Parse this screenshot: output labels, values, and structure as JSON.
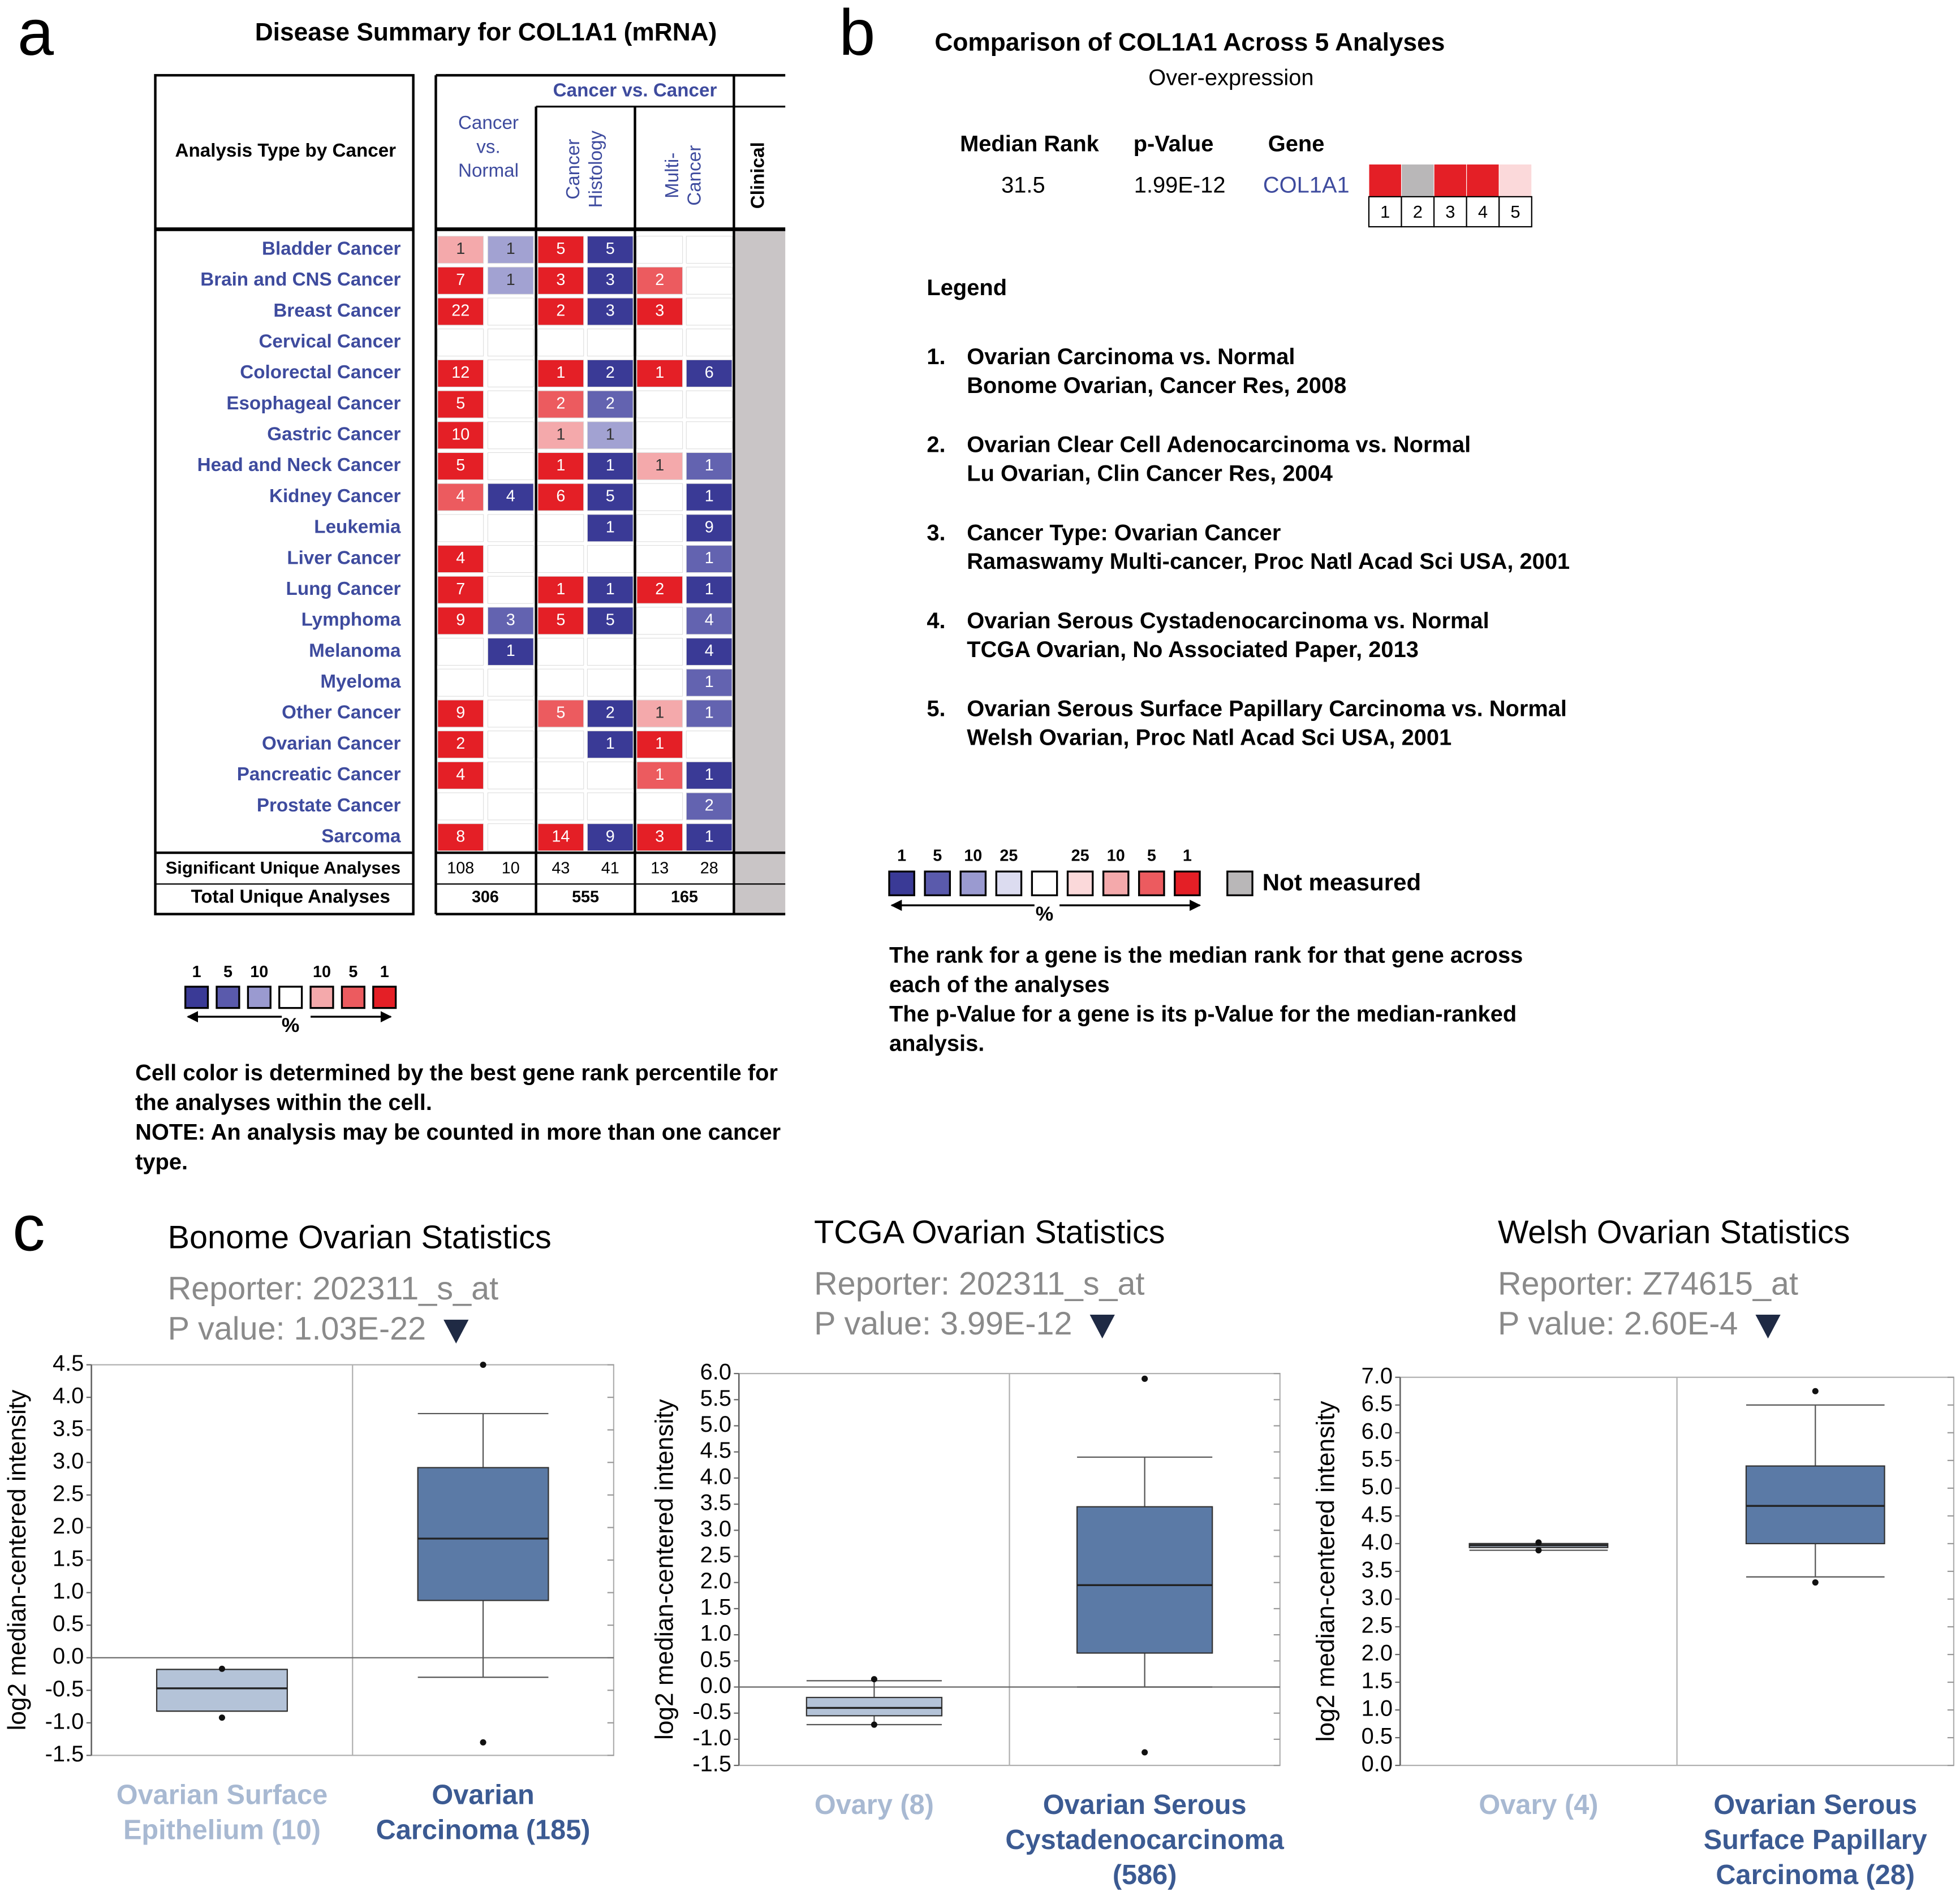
{
  "labels": [
    "a",
    "b",
    "c"
  ],
  "panel_a": {
    "title": "Disease Summary for COL1A1 (mRNA)",
    "row_header": "Analysis Type by Cancer",
    "group_header": "Cancer vs. Cancer",
    "column_groups": [
      [
        "Cancer",
        "vs.",
        "Normal"
      ],
      [
        "Cancer",
        "Histology"
      ],
      [
        "Multi-",
        "Cancer"
      ],
      [
        "Clinical"
      ]
    ],
    "rows": [
      {
        "label": "Bladder Cancer",
        "cells": [
          1,
          1,
          5,
          5,
          null,
          null
        ],
        "colors": [
          "#f4a9ab",
          "#a2a2d2",
          "#e41f26",
          "#3a3a96",
          null,
          null
        ]
      },
      {
        "label": "Brain and CNS Cancer",
        "cells": [
          7,
          1,
          3,
          3,
          2,
          null
        ],
        "colors": [
          "#e41f26",
          "#a2a2d2",
          "#e41f26",
          "#3a3a96",
          "#ec5b5f",
          null
        ]
      },
      {
        "label": "Breast Cancer",
        "cells": [
          22,
          null,
          2,
          3,
          3,
          null
        ],
        "colors": [
          "#e41f26",
          null,
          "#e41f26",
          "#3a3a96",
          "#e41f26",
          null
        ]
      },
      {
        "label": "Cervical Cancer",
        "cells": [
          null,
          null,
          null,
          null,
          null,
          null
        ],
        "colors": [
          null,
          null,
          null,
          null,
          null,
          null
        ]
      },
      {
        "label": "Colorectal Cancer",
        "cells": [
          12,
          null,
          1,
          2,
          1,
          6
        ],
        "colors": [
          "#e41f26",
          null,
          "#e41f26",
          "#3a3a96",
          "#e41f26",
          "#3a3a96"
        ]
      },
      {
        "label": "Esophageal Cancer",
        "cells": [
          5,
          null,
          2,
          2,
          null,
          null
        ],
        "colors": [
          "#e41f26",
          null,
          "#ec5b5f",
          "#6363b0",
          null,
          null
        ]
      },
      {
        "label": "Gastric Cancer",
        "cells": [
          10,
          null,
          1,
          1,
          null,
          null
        ],
        "colors": [
          "#e41f26",
          null,
          "#f4a9ab",
          "#a2a2d2",
          null,
          null
        ]
      },
      {
        "label": "Head and Neck Cancer",
        "cells": [
          5,
          null,
          1,
          1,
          1,
          1
        ],
        "colors": [
          "#e41f26",
          null,
          "#e41f26",
          "#3a3a96",
          "#f4a9ab",
          "#6363b0"
        ]
      },
      {
        "label": "Kidney Cancer",
        "cells": [
          4,
          4,
          6,
          5,
          null,
          1
        ],
        "colors": [
          "#ec5b5f",
          "#3a3a96",
          "#e41f26",
          "#3a3a96",
          null,
          "#3a3a96"
        ]
      },
      {
        "label": "Leukemia",
        "cells": [
          null,
          null,
          null,
          1,
          null,
          9
        ],
        "colors": [
          null,
          null,
          null,
          "#3a3a96",
          null,
          "#3a3a96"
        ]
      },
      {
        "label": "Liver Cancer",
        "cells": [
          4,
          null,
          null,
          null,
          null,
          1
        ],
        "colors": [
          "#e41f26",
          null,
          null,
          null,
          null,
          "#6363b0"
        ]
      },
      {
        "label": "Lung Cancer",
        "cells": [
          7,
          null,
          1,
          1,
          2,
          1
        ],
        "colors": [
          "#e41f26",
          null,
          "#e41f26",
          "#3a3a96",
          "#e41f26",
          "#3a3a96"
        ]
      },
      {
        "label": "Lymphoma",
        "cells": [
          9,
          3,
          5,
          5,
          null,
          4
        ],
        "colors": [
          "#e41f26",
          "#6363b0",
          "#e41f26",
          "#3a3a96",
          null,
          "#6363b0"
        ]
      },
      {
        "label": "Melanoma",
        "cells": [
          null,
          1,
          null,
          null,
          null,
          4
        ],
        "colors": [
          null,
          "#3a3a96",
          null,
          null,
          null,
          "#3a3a96"
        ]
      },
      {
        "label": "Myeloma",
        "cells": [
          null,
          null,
          null,
          null,
          null,
          1
        ],
        "colors": [
          null,
          null,
          null,
          null,
          null,
          "#6363b0"
        ]
      },
      {
        "label": "Other Cancer",
        "cells": [
          9,
          null,
          5,
          2,
          1,
          1
        ],
        "colors": [
          "#e41f26",
          null,
          "#ec5b5f",
          "#3a3a96",
          "#f4a9ab",
          "#6363b0"
        ]
      },
      {
        "label": "Ovarian Cancer",
        "cells": [
          2,
          null,
          null,
          1,
          1,
          null
        ],
        "colors": [
          "#e41f26",
          null,
          null,
          "#3a3a96",
          "#e41f26",
          null
        ]
      },
      {
        "label": "Pancreatic Cancer",
        "cells": [
          4,
          null,
          null,
          null,
          1,
          1
        ],
        "colors": [
          "#e41f26",
          null,
          null,
          null,
          "#ec5b5f",
          "#3a3a96"
        ]
      },
      {
        "label": "Prostate Cancer",
        "cells": [
          null,
          null,
          null,
          null,
          null,
          2
        ],
        "colors": [
          null,
          null,
          null,
          null,
          null,
          "#6363b0"
        ]
      },
      {
        "label": "Sarcoma",
        "cells": [
          8,
          null,
          14,
          9,
          3,
          1
        ],
        "colors": [
          "#e41f26",
          null,
          "#e41f26",
          "#3a3a96",
          "#e41f26",
          "#3a3a96"
        ]
      }
    ],
    "significant": {
      "label": "Significant Unique Analyses",
      "values": [
        108,
        10,
        43,
        41,
        13,
        28
      ]
    },
    "total": {
      "label": "Total Unique Analyses",
      "values": [
        306,
        555,
        165
      ]
    },
    "clinical_color": "#c9c5c6",
    "legend": {
      "labels": [
        1,
        5,
        10,
        null,
        10,
        5,
        1
      ],
      "colors": [
        "#3a3a96",
        "#5a5aac",
        "#9a9ad0",
        "#ffffff",
        "#f4a9ab",
        "#ec5b5f",
        "#e41f26"
      ],
      "unit": "%"
    },
    "notes": [
      "Cell color is determined by the best gene rank percentile for",
      "the analyses within the cell.",
      "NOTE: An analysis may be counted in more than one cancer",
      "type."
    ]
  },
  "panel_b": {
    "title": "Comparison of COL1A1 Across 5 Analyses",
    "subtitle": "Over-expression",
    "headers": [
      "Median Rank",
      "p-Value",
      "Gene"
    ],
    "values": [
      "31.5",
      "1.99E-12",
      "COL1A1"
    ],
    "heatmap": {
      "colors": [
        "#e41f26",
        "#b9b7b8",
        "#e41f26",
        "#e41f26",
        "#fbd9da"
      ],
      "labels": [
        1,
        2,
        3,
        4,
        5
      ]
    },
    "legend_title": "Legend",
    "items": [
      {
        "number": "1.",
        "lines": [
          "Ovarian Carcinoma vs. Normal",
          "Bonome Ovarian, Cancer Res, 2008"
        ]
      },
      {
        "number": "2.",
        "lines": [
          "Ovarian Clear Cell Adenocarcinoma vs. Normal",
          "Lu Ovarian, Clin Cancer Res, 2004"
        ]
      },
      {
        "number": "3.",
        "lines": [
          "Cancer Type: Ovarian Cancer",
          "Ramaswamy Multi-cancer, Proc Natl Acad  Sci USA, 2001"
        ]
      },
      {
        "number": "4.",
        "lines": [
          "Ovarian Serous Cystadenocarcinoma vs. Normal",
          "TCGA Ovarian, No Associated Paper, 2013"
        ]
      },
      {
        "number": "5.",
        "lines": [
          "Ovarian Serous Surface Papillary Carcinoma vs. Normal",
          "Welsh Ovarian, Proc Natl Acad Sci USA, 2001"
        ]
      }
    ],
    "scale": {
      "labels": [
        1,
        5,
        10,
        25,
        null,
        25,
        10,
        5,
        1
      ],
      "colors": [
        "#3a3a96",
        "#5a5aac",
        "#9a9ad0",
        "#dcdcf0",
        "#ffffff",
        "#fbd9da",
        "#f4a9ab",
        "#ec5b5f",
        "#e41f26"
      ],
      "unit": "%",
      "not_measured": {
        "label": "Not measured",
        "color": "#b9b7b8"
      }
    },
    "notes": [
      "The rank for a gene is the median rank for that gene across",
      "each of the analyses",
      "The p-Value for a gene is its p-Value for the median-ranked",
      "analysis."
    ]
  },
  "chart_data": [
    {
      "type": "box",
      "title": "Bonome Ovarian Statistics",
      "reporter": "Reporter: 202311_s_at",
      "p_value": "P value: 1.03E-22",
      "ylabel": "log2 median-centered intensity",
      "ylim": [
        -1.5,
        4.5
      ],
      "yticks": [
        -1.5,
        {
          "value": -1,
          "label": "-1.0"
        },
        -0.5,
        {
          "value": 0,
          "label": "0.0"
        },
        0.5,
        {
          "value": 1,
          "label": "1.0"
        },
        1.5,
        {
          "value": 2,
          "label": "2.0"
        },
        2.5,
        {
          "value": 3,
          "label": "3.0"
        },
        3.5,
        {
          "value": 4,
          "label": "4.0"
        },
        4.5
      ],
      "categories": [
        [
          "Ovarian Surface",
          "Epithelium (10)"
        ],
        [
          "Ovarian",
          "Carcinoma (185)"
        ]
      ],
      "boxes": [
        {
          "min": -0.92,
          "whisker_low": -0.82,
          "q1": -0.82,
          "median": -0.47,
          "q3": -0.18,
          "whisker_high": -0.18,
          "max": -0.17,
          "color": "#b4c3d8",
          "label_color": "#a8b9d2"
        },
        {
          "min": -1.3,
          "whisker_low": -0.3,
          "q1": 0.88,
          "median": 1.83,
          "q3": 2.92,
          "whisker_high": 3.75,
          "max": 4.5,
          "color": "#5b7aa6",
          "label_color": "#3b5a92"
        }
      ]
    },
    {
      "type": "box",
      "title": "TCGA Ovarian Statistics",
      "reporter": "Reporter: 202311_s_at",
      "p_value": "P value: 3.99E-12",
      "ylabel": "log2 median-centered intensity",
      "ylim": [
        -1.5,
        6
      ],
      "yticks": [
        -1.5,
        {
          "value": -1,
          "label": "-1.0"
        },
        -0.5,
        {
          "value": 0,
          "label": "0.0"
        },
        0.5,
        {
          "value": 1,
          "label": "1.0"
        },
        1.5,
        {
          "value": 2,
          "label": "2.0"
        },
        2.5,
        {
          "value": 3,
          "label": "3.0"
        },
        3.5,
        {
          "value": 4,
          "label": "4.0"
        },
        4.5,
        {
          "value": 5,
          "label": "5.0"
        },
        5.5,
        {
          "value": 6,
          "label": "6.0"
        }
      ],
      "categories": [
        [
          "Ovary (8)"
        ],
        [
          "Ovarian Serous",
          "Cystadenocarcinoma",
          "(586)"
        ]
      ],
      "boxes": [
        {
          "min": -0.72,
          "whisker_low": -0.72,
          "q1": -0.55,
          "median": -0.4,
          "q3": -0.2,
          "whisker_high": 0.12,
          "max": 0.15,
          "color": "#b4c3d8",
          "label_color": "#a8b9d2"
        },
        {
          "min": -1.25,
          "whisker_low": 0,
          "q1": 0.65,
          "median": 1.95,
          "q3": 3.45,
          "whisker_high": 4.4,
          "max": 5.9,
          "color": "#5b7aa6",
          "label_color": "#3b5a92"
        }
      ]
    },
    {
      "type": "box",
      "title": "Welsh Ovarian Statistics",
      "reporter": "Reporter: Z74615_at",
      "p_value": "P value: 2.60E-4",
      "ylabel": "log2 median-centered intensity",
      "ylim": [
        0,
        7
      ],
      "yticks": [
        {
          "value": 0,
          "label": "0.0"
        },
        0.5,
        {
          "value": 1,
          "label": "1.0"
        },
        1.5,
        {
          "value": 2,
          "label": "2.0"
        },
        2.5,
        {
          "value": 3,
          "label": "3.0"
        },
        3.5,
        {
          "value": 4,
          "label": "4.0"
        },
        4.5,
        {
          "value": 5,
          "label": "5.0"
        },
        5.5,
        {
          "value": 6,
          "label": "6.0"
        },
        6.5,
        {
          "value": 7,
          "label": "7.0"
        }
      ],
      "categories": [
        [
          "Ovary (4)"
        ],
        [
          "Ovarian Serous",
          "Surface Papillary",
          "Carcinoma (28)"
        ]
      ],
      "boxes": [
        {
          "min": 3.88,
          "whisker_low": 3.88,
          "q1": 3.93,
          "median": 3.97,
          "q3": 4,
          "whisker_high": 4,
          "max": 4.02,
          "color": "#b4c3d8",
          "label_color": "#a8b9d2"
        },
        {
          "min": 3.3,
          "whisker_low": 3.4,
          "q1": 4,
          "median": 4.68,
          "q3": 5.4,
          "whisker_high": 6.5,
          "max": 6.75,
          "color": "#5b7aa6",
          "label_color": "#3b5a92"
        }
      ]
    }
  ]
}
